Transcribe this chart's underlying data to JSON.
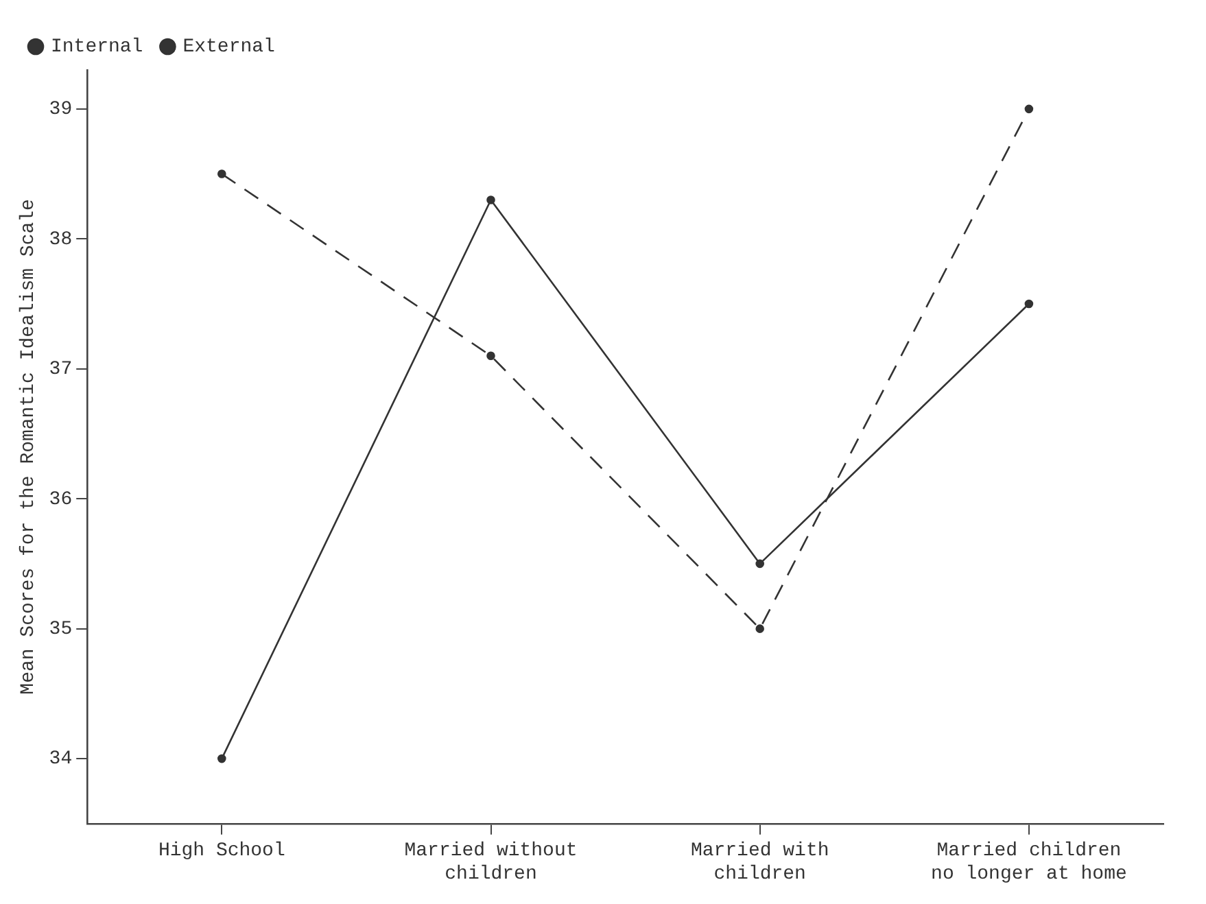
{
  "chart_data": {
    "type": "line",
    "ylabel": "Mean Scores for the Romantic Idealism Scale",
    "categories": [
      "High School",
      "Married without\nchildren",
      "Married with\nchildren",
      "Married children\nno longer at home"
    ],
    "series": [
      {
        "name": "Internal",
        "color": "#333333",
        "line_style": "solid",
        "values": [
          34.0,
          38.3,
          35.5,
          37.5
        ]
      },
      {
        "name": "External",
        "color": "#333333",
        "line_style": "dashed",
        "values": [
          38.5,
          37.1,
          35.0,
          39.0
        ]
      }
    ],
    "ylim": [
      33.5,
      39.3
    ],
    "yticks": [
      34,
      35,
      36,
      37,
      38,
      39
    ],
    "grid": false,
    "legend": "top left",
    "marker": "circle"
  }
}
